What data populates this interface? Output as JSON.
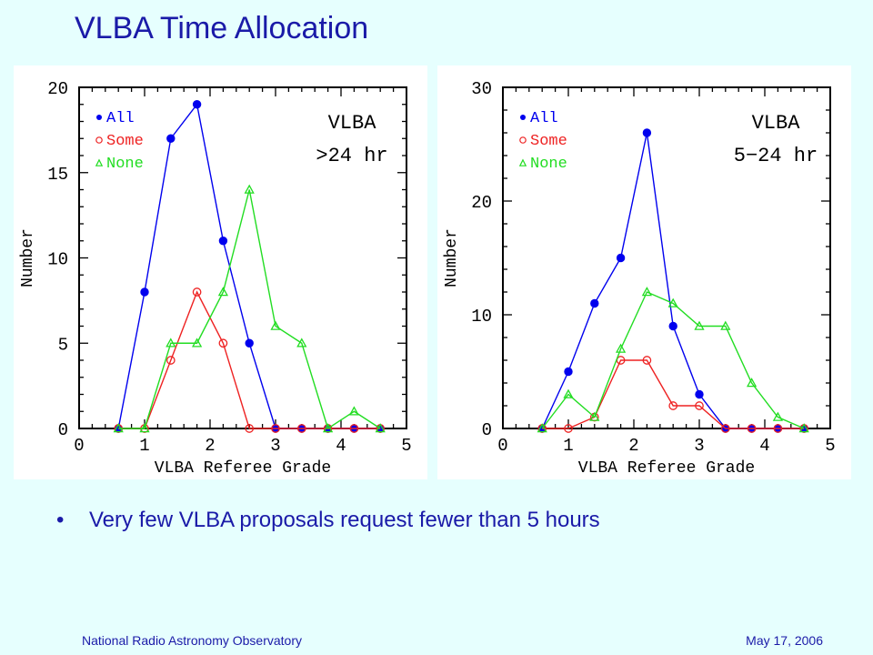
{
  "slide": {
    "title": "VLBA Time Allocation",
    "bullet": "Very few VLBA proposals request fewer than 5 hours",
    "footer_left": "National Radio Astronomy Observatory",
    "footer_right": "May 17, 2006"
  },
  "colors": {
    "all": "#0000ee",
    "some": "#ee2222",
    "none": "#22dd22",
    "frame": "#000000",
    "text": "#1a1aa8"
  },
  "chart_data": [
    {
      "type": "line",
      "title": "VLBA",
      "subtitle": ">24 hr",
      "xlabel": "VLBA Referee Grade",
      "ylabel": "Number",
      "xlim": [
        0,
        5
      ],
      "ylim": [
        0,
        20
      ],
      "xticks": [
        0,
        1,
        2,
        3,
        4,
        5
      ],
      "yticks": [
        0,
        5,
        10,
        15,
        20
      ],
      "x": [
        0.6,
        1.0,
        1.4,
        1.8,
        2.2,
        2.6,
        3.0,
        3.4,
        3.8,
        4.2,
        4.6
      ],
      "series": [
        {
          "name": "All",
          "marker": "filled-circle",
          "values": [
            0,
            8,
            17,
            19,
            11,
            5,
            0,
            0,
            0,
            0,
            0
          ]
        },
        {
          "name": "Some",
          "marker": "open-circle",
          "values": [
            0,
            0,
            4,
            8,
            5,
            0,
            0,
            0,
            0,
            0,
            0
          ]
        },
        {
          "name": "None",
          "marker": "open-triangle",
          "values": [
            0,
            0,
            5,
            5,
            8,
            14,
            6,
            5,
            0,
            1,
            0
          ]
        }
      ]
    },
    {
      "type": "line",
      "title": "VLBA",
      "subtitle": "5−24 hr",
      "xlabel": "VLBA Referee Grade",
      "ylabel": "Number",
      "xlim": [
        0,
        5
      ],
      "ylim": [
        0,
        30
      ],
      "xticks": [
        0,
        1,
        2,
        3,
        4,
        5
      ],
      "yticks": [
        0,
        10,
        20,
        30
      ],
      "x": [
        0.6,
        1.0,
        1.4,
        1.8,
        2.2,
        2.6,
        3.0,
        3.4,
        3.8,
        4.2,
        4.6
      ],
      "series": [
        {
          "name": "All",
          "marker": "filled-circle",
          "values": [
            0,
            5,
            11,
            15,
            26,
            9,
            3,
            0,
            0,
            0,
            0
          ]
        },
        {
          "name": "Some",
          "marker": "open-circle",
          "values": [
            0,
            0,
            1,
            6,
            6,
            2,
            2,
            0,
            0,
            0,
            0
          ]
        },
        {
          "name": "None",
          "marker": "open-triangle",
          "values": [
            0,
            3,
            1,
            7,
            12,
            11,
            9,
            9,
            4,
            1,
            0
          ]
        }
      ]
    }
  ]
}
